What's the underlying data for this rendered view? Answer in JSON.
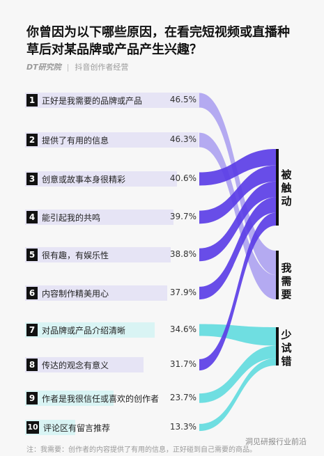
{
  "title_line1": "你曾因为以下哪些原因，在看完短视频或直播种",
  "title_line2": "草后对某品牌或产品产生兴趣？",
  "source_logo": "DT研究院",
  "source_partner": "抖音创作者经营",
  "colors": {
    "被触动": "#5b3ee6",
    "我需要": "#a89cf0",
    "少试错": "#57d9dd",
    "row_bg_purple": "#e6e4f5",
    "row_bg_cyan": "#d9f4f4"
  },
  "chart_data": {
    "type": "sankey",
    "title": "你曾因为以下哪些原因，在看完短视频或直播种草后对某品牌或产品产生兴趣？",
    "unit": "%",
    "categories": [
      "被触动",
      "我需要",
      "少试错"
    ],
    "reasons": [
      {
        "rank": "1",
        "label": "正好是我需要的品牌或产品",
        "value": 46.5,
        "value_label": "46.5%",
        "group": "我需要"
      },
      {
        "rank": "2",
        "label": "提供了有用的信息",
        "value": 46.3,
        "value_label": "46.3%",
        "group": "我需要"
      },
      {
        "rank": "3",
        "label": "创意或故事本身很精彩",
        "value": 40.6,
        "value_label": "40.6%",
        "group": "被触动"
      },
      {
        "rank": "4",
        "label": "能引起我的共鸣",
        "value": 39.7,
        "value_label": "39.7%",
        "group": "被触动"
      },
      {
        "rank": "5",
        "label": "很有趣，有娱乐性",
        "value": 38.8,
        "value_label": "38.8%",
        "group": "被触动"
      },
      {
        "rank": "6",
        "label": "内容制作精美用心",
        "value": 37.9,
        "value_label": "37.9%",
        "group": "被触动"
      },
      {
        "rank": "7",
        "label": "对品牌或产品介绍清晰",
        "value": 34.6,
        "value_label": "34.6%",
        "group": "少试错"
      },
      {
        "rank": "8",
        "label": "传达的观念有意义",
        "value": 31.7,
        "value_label": "31.7%",
        "group": "被触动"
      },
      {
        "rank": "9",
        "label": "作者是我很信任或喜欢的创作者",
        "value": 23.7,
        "value_label": "23.7%",
        "group": "少试错"
      },
      {
        "rank": "10",
        "label": "评论区有留言推荐",
        "value": 13.3,
        "value_label": "13.3%",
        "group": "少试错"
      }
    ]
  },
  "note": "注：我需要：创作者的内容提供了有用的信息，正好碰到自己需要的商品。",
  "watermark": "洞见研报行业前沿"
}
